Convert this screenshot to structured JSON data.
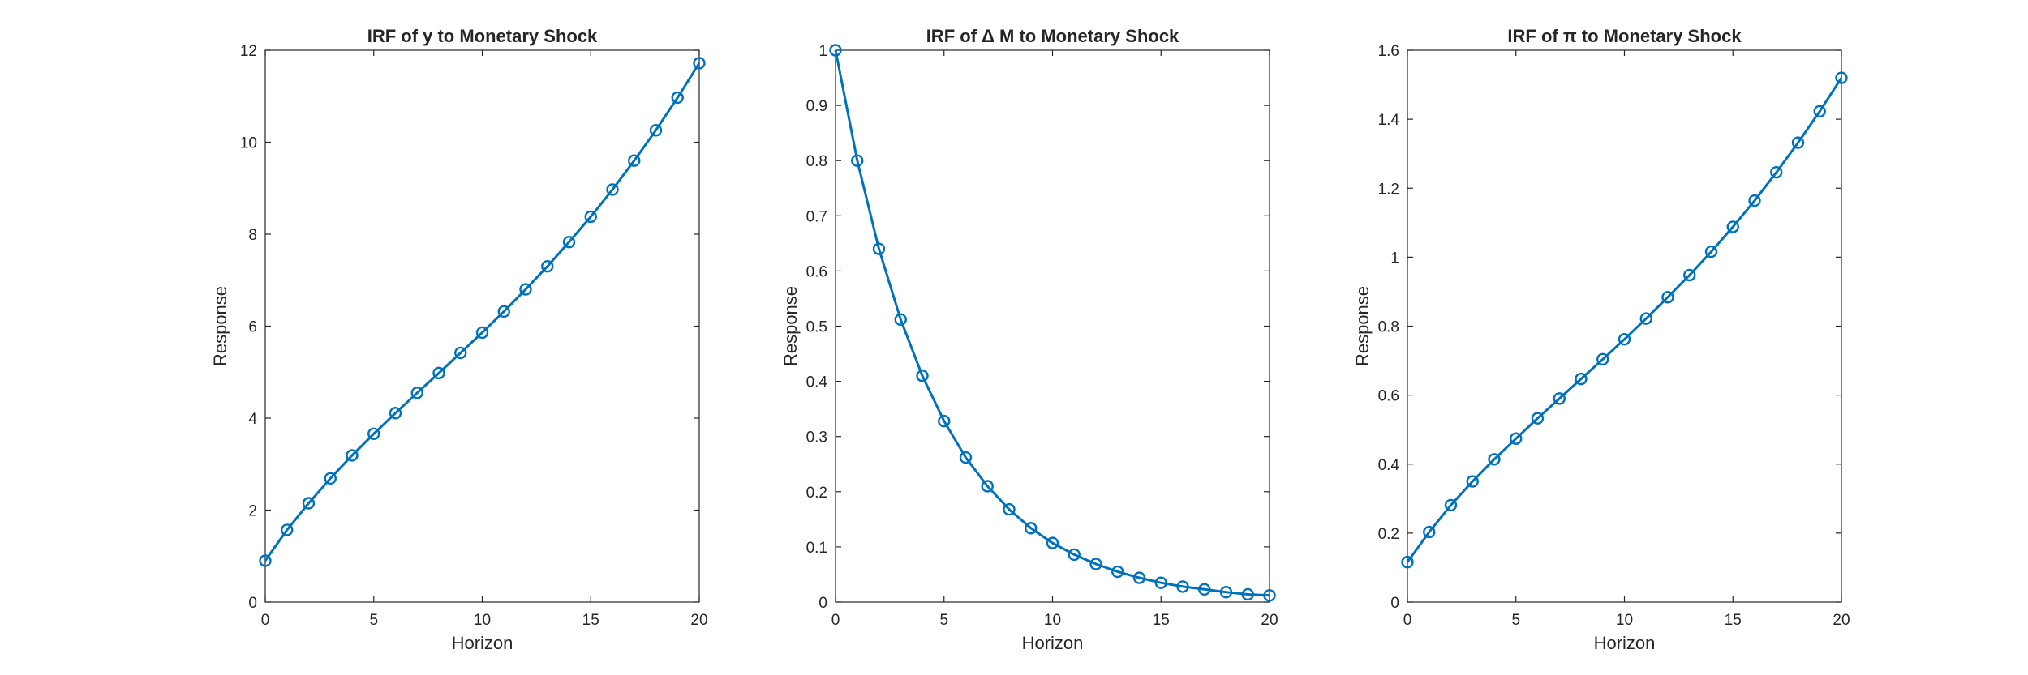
{
  "figure": {
    "background": "#ffffff"
  },
  "style": {
    "line_color": "#0072BD",
    "axis_color": "#262626"
  },
  "chart_data": [
    {
      "type": "line",
      "title": "IRF of y to Monetary Shock",
      "xlabel": "Horizon",
      "ylabel": "Response",
      "xlim": [
        0,
        20
      ],
      "ylim": [
        0,
        12
      ],
      "xticks": [
        0,
        5,
        10,
        15,
        20
      ],
      "yticks": [
        0,
        2,
        4,
        6,
        8,
        10,
        12
      ],
      "ytick_labels": [
        "0",
        "2",
        "4",
        "6",
        "8",
        "10",
        "12"
      ],
      "grid": false,
      "marker": "circle",
      "x": [
        0,
        1,
        2,
        3,
        4,
        5,
        6,
        7,
        8,
        9,
        10,
        11,
        12,
        13,
        14,
        15,
        16,
        17,
        18,
        19,
        20
      ],
      "series": [
        {
          "values": [
            0.9,
            1.57,
            2.15,
            2.69,
            3.19,
            3.66,
            4.11,
            4.55,
            4.98,
            5.42,
            5.86,
            6.32,
            6.8,
            7.3,
            7.83,
            8.38,
            8.97,
            9.6,
            10.26,
            10.97,
            11.72
          ]
        }
      ]
    },
    {
      "type": "line",
      "title": "IRF of Δ M to Monetary Shock",
      "xlabel": "Horizon",
      "ylabel": "Response",
      "xlim": [
        0,
        20
      ],
      "ylim": [
        0,
        1
      ],
      "xticks": [
        0,
        5,
        10,
        15,
        20
      ],
      "yticks": [
        0,
        0.1,
        0.2,
        0.3,
        0.4,
        0.5,
        0.6,
        0.7,
        0.8,
        0.9,
        1
      ],
      "ytick_labels": [
        "0",
        "0.1",
        "0.2",
        "0.3",
        "0.4",
        "0.5",
        "0.6",
        "0.7",
        "0.8",
        "0.9",
        "1"
      ],
      "grid": false,
      "marker": "circle",
      "x": [
        0,
        1,
        2,
        3,
        4,
        5,
        6,
        7,
        8,
        9,
        10,
        11,
        12,
        13,
        14,
        15,
        16,
        17,
        18,
        19,
        20
      ],
      "series": [
        {
          "values": [
            1.0,
            0.8,
            0.64,
            0.512,
            0.41,
            0.328,
            0.262,
            0.21,
            0.168,
            0.134,
            0.107,
            0.086,
            0.069,
            0.055,
            0.044,
            0.035,
            0.028,
            0.023,
            0.018,
            0.014,
            0.012
          ]
        }
      ]
    },
    {
      "type": "line",
      "title": "IRF of π to Monetary Shock",
      "xlabel": "Horizon",
      "ylabel": "Response",
      "xlim": [
        0,
        20
      ],
      "ylim": [
        0,
        1.6
      ],
      "xticks": [
        0,
        5,
        10,
        15,
        20
      ],
      "yticks": [
        0,
        0.2,
        0.4,
        0.6,
        0.8,
        1,
        1.2,
        1.4,
        1.6
      ],
      "ytick_labels": [
        "0",
        "0.2",
        "0.4",
        "0.6",
        "0.8",
        "1",
        "1.2",
        "1.4",
        "1.6"
      ],
      "grid": false,
      "marker": "circle",
      "x": [
        0,
        1,
        2,
        3,
        4,
        5,
        6,
        7,
        8,
        9,
        10,
        11,
        12,
        13,
        14,
        15,
        16,
        17,
        18,
        19,
        20
      ],
      "series": [
        {
          "values": [
            0.116,
            0.203,
            0.281,
            0.35,
            0.414,
            0.474,
            0.533,
            0.59,
            0.647,
            0.704,
            0.762,
            0.822,
            0.884,
            0.948,
            1.016,
            1.088,
            1.164,
            1.246,
            1.332,
            1.423,
            1.52
          ]
        }
      ]
    }
  ]
}
